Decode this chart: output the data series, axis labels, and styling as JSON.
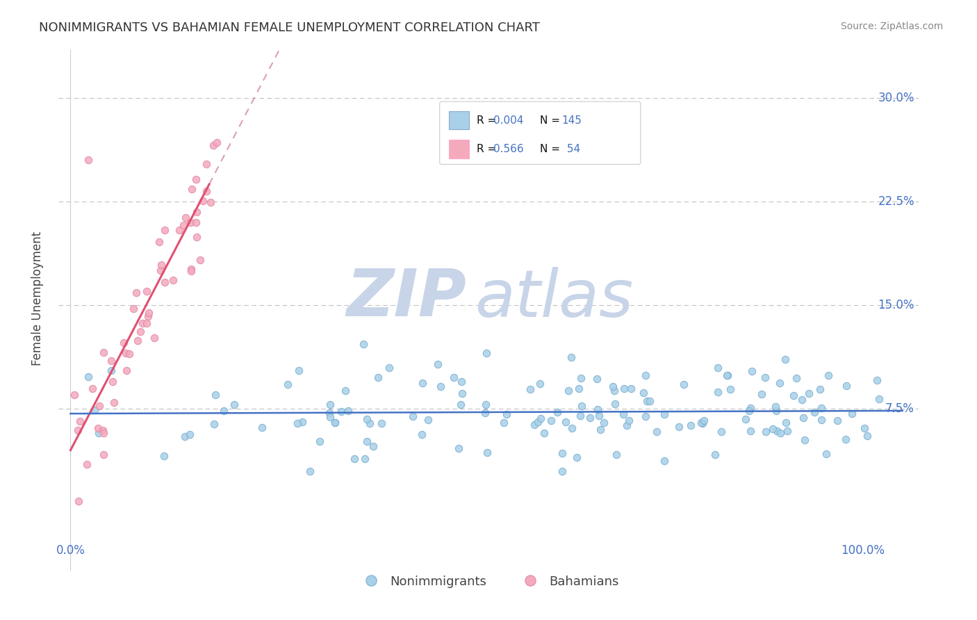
{
  "title": "NONIMMIGRANTS VS BAHAMIAN FEMALE UNEMPLOYMENT CORRELATION CHART",
  "source": "Source: ZipAtlas.com",
  "ylabel": "Female Unemployment",
  "legend_label1": "Nonimmigrants",
  "legend_label2": "Bahamians",
  "scatter_color1": "#A8D0E8",
  "scatter_color2": "#F4AABB",
  "trend_color1": "#4472C4",
  "trend_color2": "#E05070",
  "trend_dash_color": "#DDA0AA",
  "watermark_zip_color": "#C8D4E8",
  "watermark_atlas_color": "#C8D4E8",
  "title_color": "#333333",
  "axis_label_color": "#4472C4",
  "grid_color": "#BBBBBB",
  "background_color": "#FFFFFF",
  "legend_R_color": "#111111",
  "legend_val_color": "#4472C4",
  "xlim_min": -0.015,
  "xlim_max": 1.07,
  "ylim_min": -0.042,
  "ylim_max": 0.335,
  "ytick_vals": [
    0.075,
    0.15,
    0.225,
    0.3
  ],
  "ytick_labels": [
    "7.5%",
    "15.0%",
    "22.5%",
    "30.0%"
  ],
  "xtick_vals": [
    0.0,
    1.0
  ],
  "xtick_labels": [
    "0.0%",
    "100.0%"
  ],
  "trend1_x0": 0.0,
  "trend1_x1": 1.05,
  "trend1_slope": 0.002,
  "trend1_intercept": 0.0715,
  "trend2_x0": 0.0,
  "trend2_x1": 0.175,
  "trend2_slope": 1.1,
  "trend2_intercept": 0.045,
  "trend2_dash_x0": 0.0,
  "trend2_dash_x1": 0.3,
  "seed": 99
}
